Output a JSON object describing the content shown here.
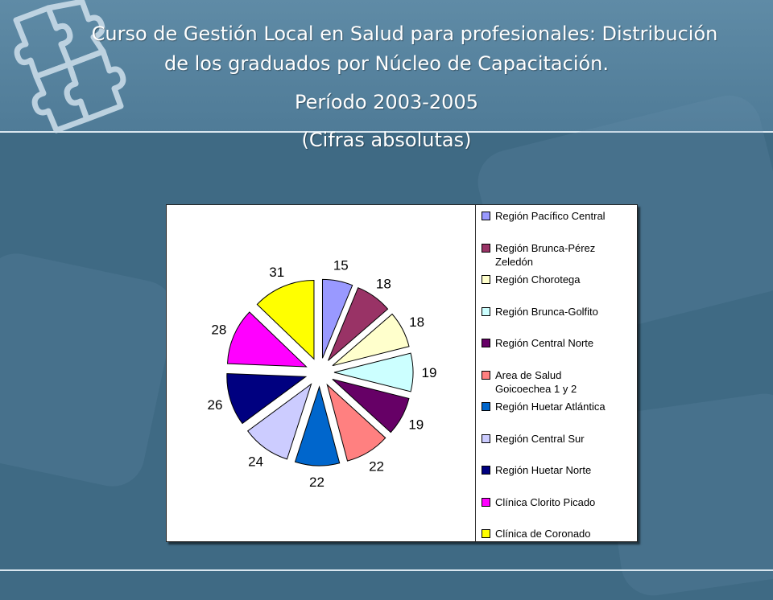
{
  "slide": {
    "title_line1": "Curso de Gestión Local en Salud para profesionales: Distribución",
    "title_line2": "de los graduados por Núcleo de Capacitación.",
    "title_line3": "Período 2003-2005",
    "title_line4": "(Cifras absolutas)"
  },
  "chart_data": {
    "type": "pie",
    "exploded": true,
    "legend_position": "right",
    "categories": [
      "Región Pacífico Central",
      "Región Brunca-Pérez Zeledón",
      "Región Chorotega",
      "Región Brunca-Golfito",
      "Región Central Norte",
      "Area de Salud Goicoechea 1 y 2",
      "Región Huetar Atlántica",
      "Región Central Sur",
      "Región Huetar Norte",
      "Clínica Clorito Picado",
      "Clínica de Coronado"
    ],
    "legend_lines": [
      [
        "Región Pacífico Central"
      ],
      [
        "Región Brunca-Pérez",
        "Zeledón"
      ],
      [
        "Región Chorotega"
      ],
      [
        "Región Brunca-Golfito"
      ],
      [
        "Región Central Norte"
      ],
      [
        "Area de Salud",
        "Goicoechea 1 y 2"
      ],
      [
        "Región Huetar Atlántica"
      ],
      [
        "Región Central Sur"
      ],
      [
        "Región Huetar Norte"
      ],
      [
        "Clínica Clorito Picado"
      ],
      [
        "Clínica de Coronado"
      ]
    ],
    "values": [
      15,
      18,
      18,
      19,
      19,
      22,
      22,
      24,
      26,
      28,
      31
    ],
    "colors": [
      "#9999ff",
      "#993366",
      "#ffffcc",
      "#ccffff",
      "#660066",
      "#ff8080",
      "#0066cc",
      "#ccccff",
      "#000080",
      "#ff00ff",
      "#ffff00"
    ]
  }
}
